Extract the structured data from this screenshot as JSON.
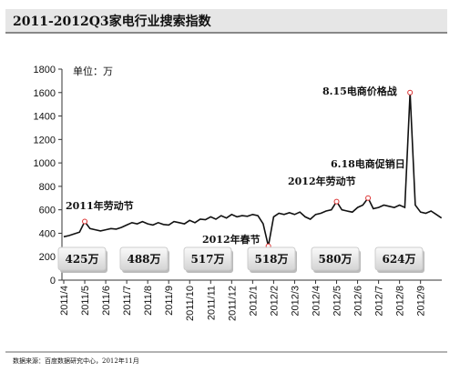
{
  "chart_data": {
    "type": "line",
    "title": "2011-2012Q3家电行业搜索指数",
    "unit_label": "单位：万",
    "source": "数据来源：百度数据研究中心，2012年11月",
    "categories": [
      "2011/4",
      null,
      null,
      null,
      "2011/5",
      null,
      null,
      null,
      "2011/6",
      null,
      null,
      null,
      "2011/7",
      null,
      null,
      null,
      "2011/8",
      null,
      null,
      null,
      "2011/9",
      null,
      null,
      null,
      "2011/10",
      null,
      null,
      null,
      "2011/11",
      null,
      null,
      null,
      "2011/12",
      null,
      null,
      null,
      "2012/1",
      null,
      null,
      null,
      "2012/2",
      null,
      null,
      null,
      "2012/3",
      null,
      null,
      null,
      "2012/4",
      null,
      null,
      null,
      "2012/5",
      null,
      null,
      null,
      "2012/6",
      null,
      null,
      null,
      "2012/7",
      null,
      null,
      null,
      "2012/8",
      null,
      null,
      null,
      "2012/9",
      null,
      null,
      null,
      null
    ],
    "values": [
      370,
      380,
      395,
      410,
      500,
      440,
      430,
      420,
      430,
      440,
      435,
      450,
      470,
      490,
      480,
      500,
      480,
      470,
      490,
      475,
      470,
      500,
      490,
      480,
      510,
      490,
      520,
      515,
      540,
      520,
      550,
      530,
      560,
      540,
      550,
      545,
      560,
      550,
      480,
      290,
      540,
      570,
      560,
      575,
      560,
      580,
      540,
      520,
      560,
      570,
      590,
      600,
      670,
      600,
      590,
      580,
      620,
      640,
      700,
      610,
      620,
      640,
      630,
      620,
      640,
      620,
      1600,
      640,
      580,
      570,
      590,
      560,
      530
    ],
    "color": "#111111",
    "ylim": [
      0,
      1800
    ],
    "yticks": [
      0,
      200,
      400,
      600,
      800,
      1000,
      1200,
      1400,
      1600,
      1800
    ],
    "annotations": [
      {
        "label": "2011年劳动节",
        "index": 4
      },
      {
        "label": "2012年春节",
        "index": 39
      },
      {
        "label": "2012年劳动节",
        "index": 52
      },
      {
        "label": "6.18电商促销日",
        "index": 58
      },
      {
        "label": "8.15电商价格战",
        "index": 66
      }
    ],
    "summary_boxes": [
      "425万",
      "488万",
      "517万",
      "518万",
      "580万",
      "624万"
    ]
  }
}
